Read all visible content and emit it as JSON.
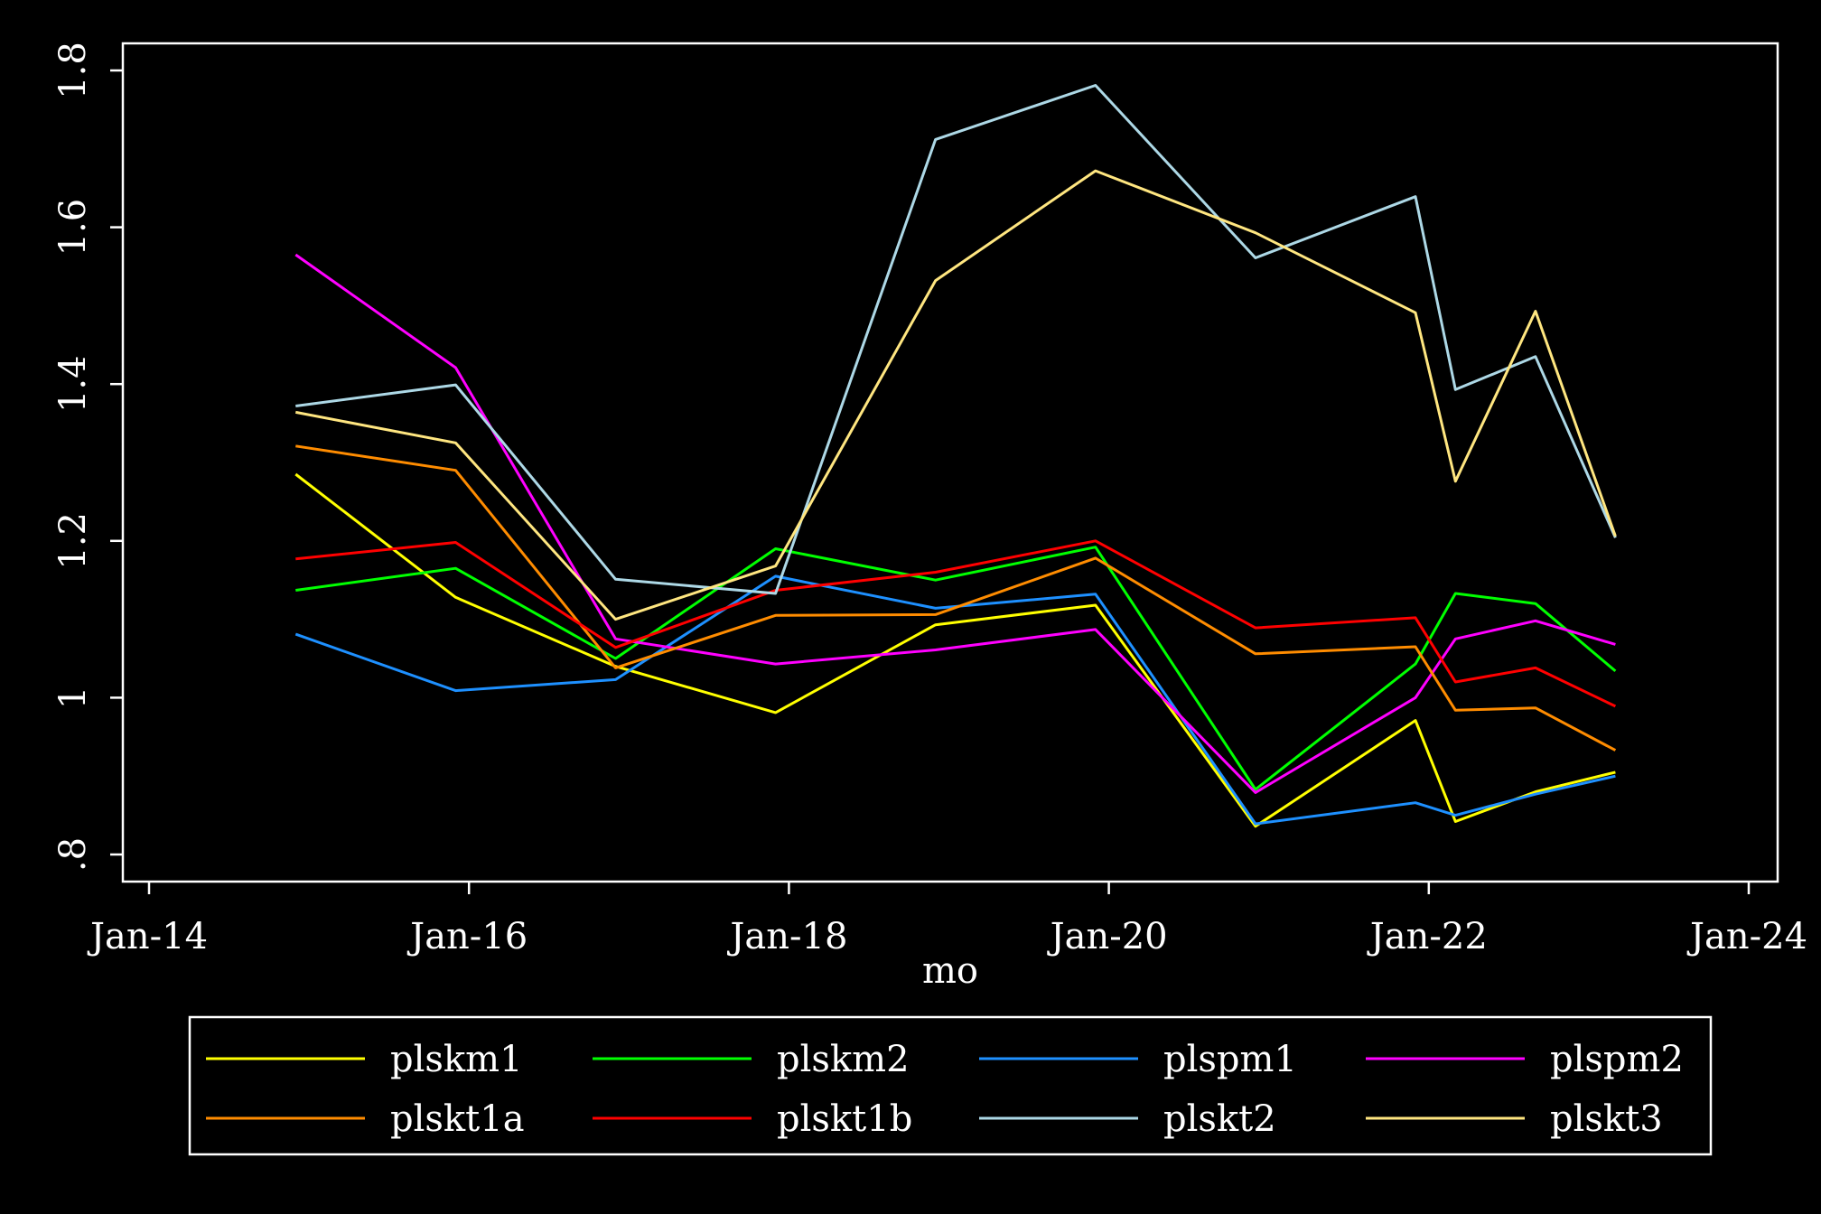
{
  "chart_data": {
    "type": "line",
    "title": "",
    "xlabel": "mo",
    "ylabel": "",
    "xlim": [
      "2014-01",
      "2024-01"
    ],
    "ylim": [
      0.8,
      1.8
    ],
    "x_ticks": [
      "Jan-14",
      "Jan-16",
      "Jan-18",
      "Jan-20",
      "Jan-22",
      "Jan-24"
    ],
    "y_ticks": [
      ".8",
      "1",
      "1.2",
      "1.4",
      "1.6",
      "1.8"
    ],
    "grid": false,
    "legend_position": "bottom",
    "background": "#000000",
    "x": [
      "2014-12",
      "2015-12",
      "2016-12",
      "2017-12",
      "2018-12",
      "2019-12",
      "2020-12",
      "2021-12",
      "2022-03",
      "2022-09",
      "2023-03"
    ],
    "series": [
      {
        "name": "plskm1",
        "color": "#ffff00",
        "values": [
          1.285,
          1.128,
          1.04,
          0.981,
          1.093,
          1.118,
          0.836,
          0.971,
          0.842,
          0.88,
          0.905
        ]
      },
      {
        "name": "plskm2",
        "color": "#00ff00",
        "values": [
          1.137,
          1.165,
          1.05,
          1.19,
          1.15,
          1.192,
          0.883,
          1.043,
          1.133,
          1.12,
          1.034
        ]
      },
      {
        "name": "plspm1",
        "color": "#1e90ff",
        "values": [
          1.081,
          1.009,
          1.023,
          1.155,
          1.114,
          1.132,
          0.839,
          0.866,
          0.85,
          0.877,
          0.9
        ]
      },
      {
        "name": "plspm2",
        "color": "#ff00ff",
        "values": [
          1.565,
          1.421,
          1.075,
          1.043,
          1.061,
          1.087,
          0.879,
          1.0,
          1.075,
          1.098,
          1.068
        ]
      },
      {
        "name": "plskt1a",
        "color": "#ff8c00",
        "values": [
          1.321,
          1.29,
          1.038,
          1.105,
          1.106,
          1.178,
          1.056,
          1.065,
          0.984,
          0.987,
          0.933
        ]
      },
      {
        "name": "plskt1b",
        "color": "#ff0000",
        "values": [
          1.177,
          1.198,
          1.064,
          1.137,
          1.16,
          1.2,
          1.089,
          1.102,
          1.02,
          1.038,
          0.989
        ]
      },
      {
        "name": "plskt2",
        "color": "#add8e6",
        "values": [
          1.372,
          1.399,
          1.151,
          1.133,
          1.712,
          1.781,
          1.561,
          1.639,
          1.393,
          1.435,
          1.204
        ]
      },
      {
        "name": "plskt3",
        "color": "#ffe680",
        "values": [
          1.364,
          1.325,
          1.1,
          1.168,
          1.532,
          1.672,
          1.593,
          1.491,
          1.276,
          1.493,
          1.206
        ]
      }
    ]
  }
}
